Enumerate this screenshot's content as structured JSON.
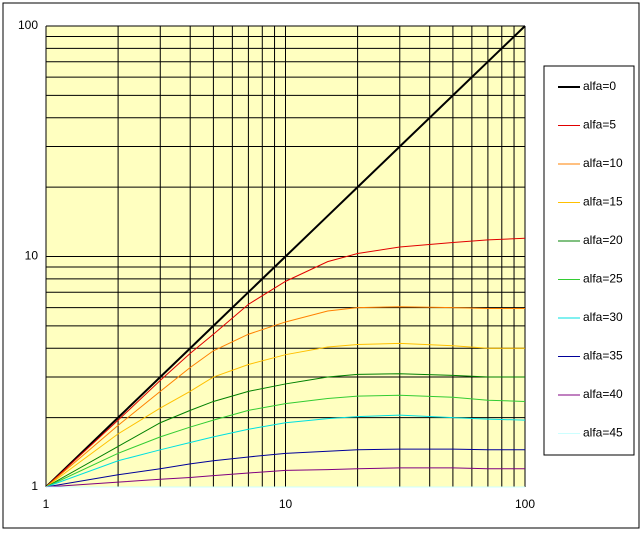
{
  "chart_data": {
    "type": "line",
    "x": [
      1,
      2,
      3,
      4,
      5,
      7,
      10,
      15,
      20,
      30,
      50,
      70,
      100
    ],
    "series": [
      {
        "name": "alfa=0",
        "color": "#000000",
        "values": [
          1,
          2,
          3,
          4,
          5,
          7,
          10,
          15,
          20,
          30,
          50,
          70,
          100
        ]
      },
      {
        "name": "alfa=5",
        "color": "#e00000",
        "values": [
          1,
          1.95,
          2.9,
          3.8,
          4.6,
          6.2,
          7.8,
          9.5,
          10.3,
          11,
          11.5,
          11.8,
          12
        ]
      },
      {
        "name": "alfa=10",
        "color": "#ff8000",
        "values": [
          1,
          1.85,
          2.6,
          3.3,
          3.9,
          4.6,
          5.2,
          5.8,
          6.0,
          6.05,
          6.0,
          5.95,
          5.95
        ]
      },
      {
        "name": "alfa=15",
        "color": "#ffc000",
        "values": [
          1,
          1.7,
          2.2,
          2.6,
          3.0,
          3.4,
          3.75,
          4.05,
          4.15,
          4.2,
          4.1,
          4.0,
          4.0
        ]
      },
      {
        "name": "alfa=20",
        "color": "#008000",
        "values": [
          1,
          1.5,
          1.9,
          2.15,
          2.35,
          2.6,
          2.8,
          3.0,
          3.08,
          3.1,
          3.05,
          3.0,
          3.0
        ]
      },
      {
        "name": "alfa=25",
        "color": "#33cc33",
        "values": [
          1,
          1.4,
          1.65,
          1.82,
          1.95,
          2.15,
          2.3,
          2.42,
          2.48,
          2.5,
          2.45,
          2.38,
          2.35
        ]
      },
      {
        "name": "alfa=30",
        "color": "#00e0e0",
        "values": [
          1,
          1.3,
          1.45,
          1.56,
          1.65,
          1.78,
          1.9,
          1.98,
          2.02,
          2.05,
          2.0,
          1.97,
          1.95
        ]
      },
      {
        "name": "alfa=35",
        "color": "#000099",
        "values": [
          1,
          1.13,
          1.2,
          1.26,
          1.3,
          1.35,
          1.4,
          1.43,
          1.45,
          1.46,
          1.46,
          1.45,
          1.45
        ]
      },
      {
        "name": "alfa=40",
        "color": "#800080",
        "values": [
          1,
          1.05,
          1.08,
          1.1,
          1.12,
          1.15,
          1.18,
          1.19,
          1.2,
          1.21,
          1.21,
          1.2,
          1.2
        ]
      },
      {
        "name": "alfa=45",
        "color": "#ccffff",
        "values": [
          1,
          1,
          1,
          1,
          1,
          1,
          1,
          1,
          1,
          1,
          1,
          1,
          1
        ]
      }
    ],
    "xlim": [
      1,
      100
    ],
    "ylim": [
      1,
      100
    ],
    "xticks": [
      1,
      10,
      100
    ],
    "yticks": [
      1,
      10,
      100
    ],
    "log_scale": true,
    "grid": true,
    "legend": "right"
  }
}
